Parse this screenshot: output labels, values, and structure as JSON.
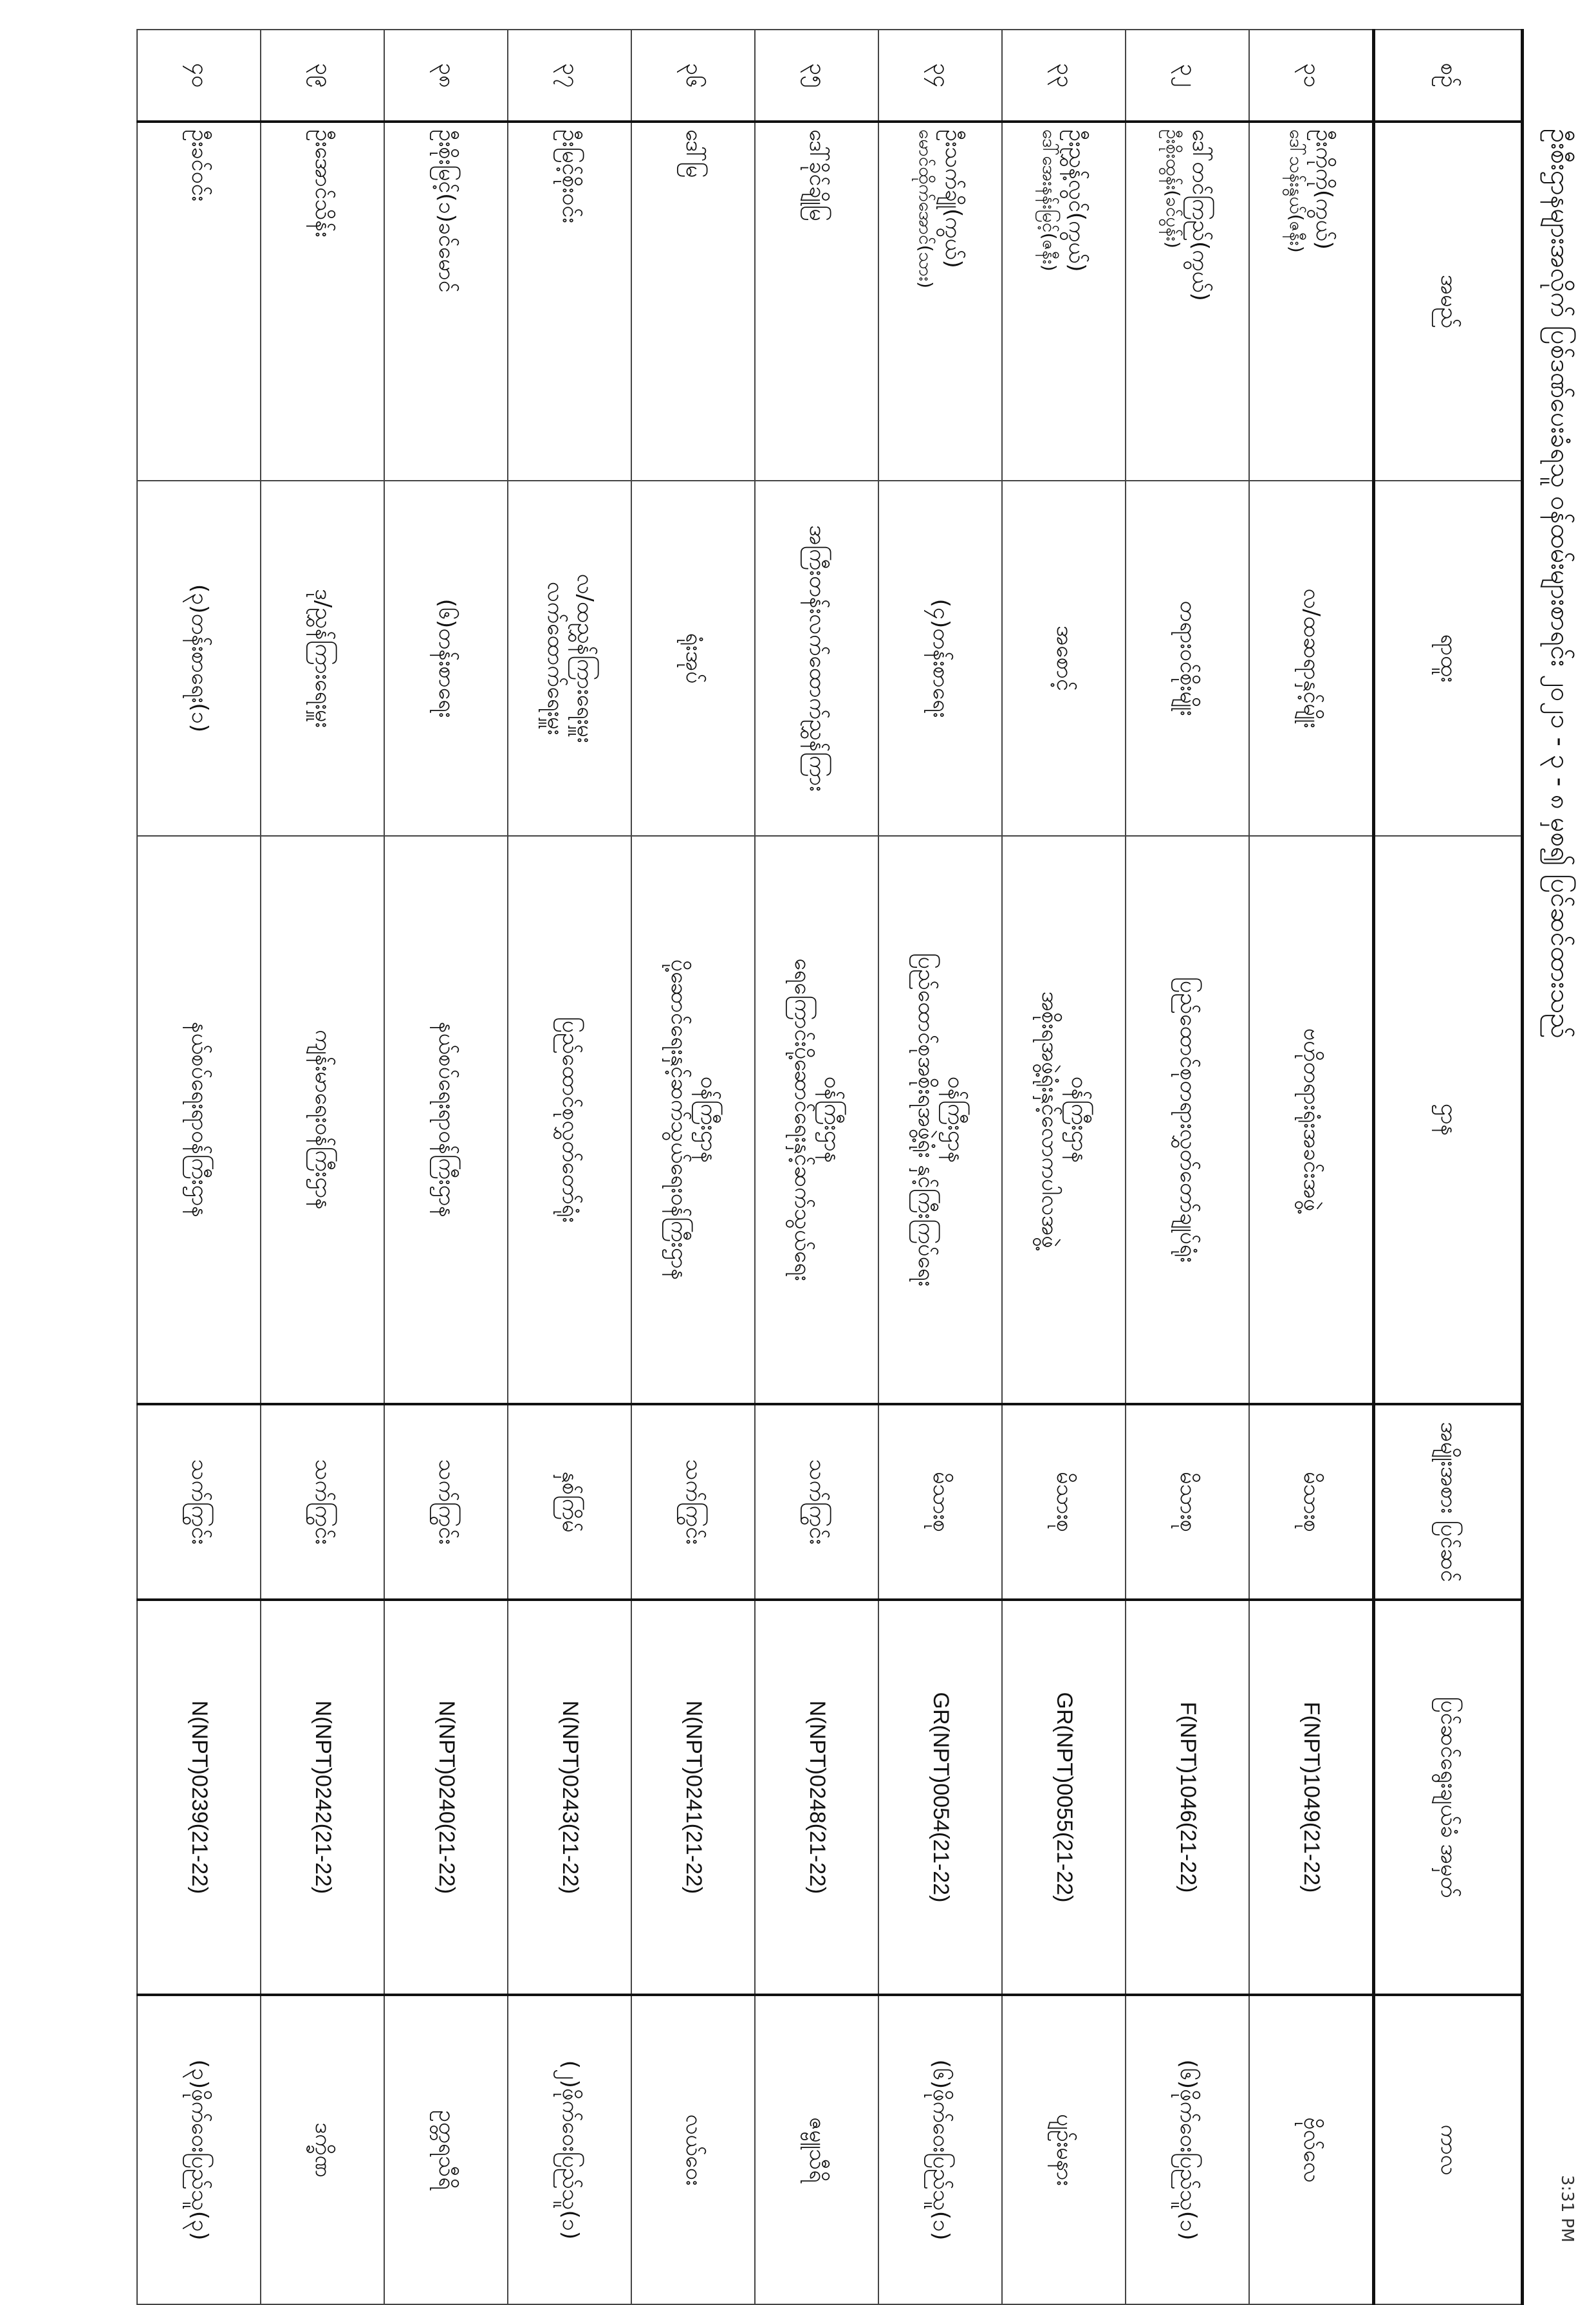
{
  "title": "ဦးစီးဌာနများအလိုက် ပြစ်ဒဏ်ပေးခံရသူ ဝန်ထမ်းများစာရင်း ၂၀၂၁ - ၃ - ၈ မှစ၍ ပြင်ဆင်ထားသည်",
  "time": "3:31 PM",
  "headers": [
    "စဉ်",
    "အမည်",
    "ရာထူး",
    "ဌာန",
    "အမျိုးအစား ပြင်ဆင်",
    "ပြင်ဆင်ရွေးချယ်ခံ အမှတ်",
    "ကာလ"
  ],
  "rows": [
    {
      "no": "၃၁",
      "name": "ဦးကိုကို(ကွယ်)",
      "name2": "ဒေါ်သန်းနွယ်(ဇနီး)",
      "title": "လ/ထဆရာနှင့်မျိုး",
      "dept": "ဗဟိုတရားရုံးအခင်းအဖွဲ့",
      "dept2": "",
      "type": "မိသားစု",
      "code": "F(NPT)1049(21-22)",
      "region": "ဗိုလ်လေ"
    },
    {
      "no": "၃၂",
      "name": "ဒေါ်တင်ကြည်(ကွယ်)",
      "name2": "ဦးစိုးထွန်း(ခင်ပွန်း)",
      "title": "တရားဝင်စိုးမျိုး",
      "dept": "ပြည်ထောင်စုတရားလွှတ်တော်ချုပ်ရုံး",
      "dept2": "",
      "type": "မိသားစု",
      "code": "F(NPT)1046(21-22)",
      "region": "(၆)ဖိုက်ဝေးပြည်သူ(၁)"
    },
    {
      "no": "၃၃",
      "name": "ဦးညွှန့်လွင်(ကွယ်)",
      "name2": "ဒေါ်အေးနန်းမြင့်(ဇနီး)",
      "title": "အစောင့်",
      "dept": "ဝန်ကြီးဌာန",
      "dept2": "အစိုးရအဖွဲ့ရုံးနှင့်လောကပါလအဖွဲ့",
      "type": "မိသားစု",
      "code": "GR(NPT)0055(21-22)",
      "region": "ပျဉ်းမနား"
    },
    {
      "no": "၃၄",
      "name": "ဦးသက်ချို(ကွယ်)",
      "name2": "မောင်ထိုက်အောင်(သား)",
      "title": "(၄)တန်းစာရေး",
      "dept": "ဝန်ကြီးဌာန",
      "dept2": "ပြည်ထောင်စုအစိုးရအဖွဲ့ရုံး နှင့်ကြီးကြပ်ရေး",
      "type": "မိသားစု",
      "code": "GR(NPT)0054(21-22)",
      "region": "(၆)ဖိုက်ဝေးပြည်သူ(၁)"
    },
    {
      "no": "၃၅",
      "name": "ဒေါ်ခိုင်ချိုမြ",
      "name2": "",
      "title": "အကြီးတန်းလက်ထောက်ညွှန်ကြား",
      "dept": "ဝန်ကြီးဌာန",
      "dept2": "ရေကြောင်းပို့ဆောင်ရေးနှင့်ဆက်သွယ်ရေး",
      "type": "သက်ကြွင်း",
      "code": "N(NPT)0248(21-22)",
      "region": "ဇမ္ဗူသီရိ"
    },
    {
      "no": "၃၆",
      "name": "ဒေါ်မြ",
      "name2": "",
      "title": "ရုံးအုပ်",
      "dept": "ဝန်ကြီးဌာန",
      "dept2": "ပို့ဆောင်ရေးနှင့်ဆက်သွယ်ရေးဝန်ကြီးဌာန",
      "type": "သက်ကြွင်း",
      "code": "N(NPT)0241(21-22)",
      "region": "လယ်ဝေး"
    },
    {
      "no": "၃၇",
      "name": "ဦးမြင့်စိုးဝင်း",
      "name2": "",
      "title": "လ/ထညွှန်ကြားရေးမှူး",
      "title2": "လက်ထောက်ရေးမှူး",
      "dept": "ပြည်ထောင်စုလွှတ်တော်ရုံး",
      "dept2": "",
      "type": "နှစ်ကြိမ်",
      "code": "N(NPT)0243(21-22)",
      "region": "(၂)ဖိုက်ဝေးပြည်သူ(၁)"
    },
    {
      "no": "၃၈",
      "name": "ဦးစိုးမြင့်(၁)ခင်မောင်",
      "name2": "",
      "title": "(၆)တန်းစာရေး",
      "dept": "နယ်စပ်ရေးရာဝန်ကြီးဌာန",
      "dept2": "",
      "type": "သက်ကြွင်း",
      "code": "N(NPT)0240(21-22)",
      "region": "ဥတ္တရသီရိ"
    },
    {
      "no": "၃၉",
      "name": "ဦးအောင်သိန်း",
      "name2": "",
      "title": "ဒု/ညွှန်ကြားရေးမှူး",
      "dept": "ကျန်းမာရေးဝန်ကြီးဌာန",
      "dept2": "",
      "type": "သက်ကြွင်း",
      "code": "N(NPT)0242(21-22)",
      "region": "ဒက္ခိဏ"
    },
    {
      "no": "၄၀",
      "name": "ဦးခင်ဝင်း",
      "name2": "",
      "title": "(၃)တန်းစာရေး(၁)",
      "dept": "နယ်စပ်ရေးရာဝန်ကြီးဌာန",
      "dept2": "",
      "type": "သက်ကြွင်း",
      "code": "N(NPT)0239(21-22)",
      "region": "(၃)ဖိုက်ဝေးပြည်သူ(၃)"
    }
  ]
}
